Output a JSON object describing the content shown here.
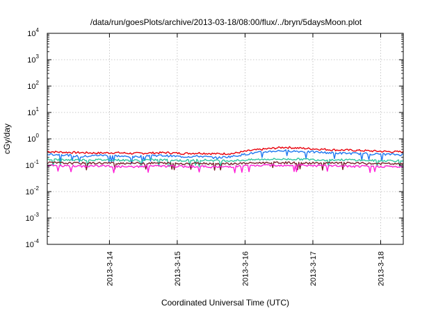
{
  "chart_data": {
    "type": "line",
    "title": "/data/run/goesPlots/archive/2013-03-18/08:00/flux/../bryn/5daysMoon.plot",
    "xlabel": "Coordinated Universal Time (UTC)",
    "ylabel": "cGy/day",
    "yscale": "log",
    "ylim": [
      0.0001,
      10000
    ],
    "xlim": [
      "2013-03-13 02:00",
      "2013-03-18 08:00"
    ],
    "grid": true,
    "x_ticks": [
      {
        "date": "2013-03-14",
        "label": "2013-3-14"
      },
      {
        "date": "2013-03-15",
        "label": "2013-3-15"
      },
      {
        "date": "2013-03-16",
        "label": "2013-3-16"
      },
      {
        "date": "2013-03-17",
        "label": "2013-3-17"
      },
      {
        "date": "2013-03-18",
        "label": "2013-3-18"
      }
    ],
    "y_ticks": [
      {
        "exp": "-4",
        "value": 0.0001
      },
      {
        "exp": "-3",
        "value": 0.001
      },
      {
        "exp": "-2",
        "value": 0.01
      },
      {
        "exp": "-1",
        "value": 0.1
      },
      {
        "exp": "0",
        "value": 1
      },
      {
        "exp": "1",
        "value": 10
      },
      {
        "exp": "2",
        "value": 100
      },
      {
        "exp": "3",
        "value": 1000
      },
      {
        "exp": "4",
        "value": 10000
      }
    ],
    "y_tick_base": "10",
    "x": [
      "2013-03-13 02:00",
      "2013-03-13 08:00",
      "2013-03-13 14:00",
      "2013-03-13 20:00",
      "2013-03-14 02:00",
      "2013-03-14 08:00",
      "2013-03-14 14:00",
      "2013-03-14 20:00",
      "2013-03-15 02:00",
      "2013-03-15 08:00",
      "2013-03-15 14:00",
      "2013-03-15 20:00",
      "2013-03-16 02:00",
      "2013-03-16 08:00",
      "2013-03-16 14:00",
      "2013-03-16 20:00",
      "2013-03-17 02:00",
      "2013-03-17 08:00",
      "2013-03-17 14:00",
      "2013-03-17 20:00",
      "2013-03-18 02:00",
      "2013-03-18 08:00"
    ],
    "series": [
      {
        "color": "#e8000b",
        "values": [
          0.33,
          0.31,
          0.3,
          0.29,
          0.3,
          0.28,
          0.29,
          0.3,
          0.28,
          0.29,
          0.27,
          0.28,
          0.36,
          0.42,
          0.48,
          0.44,
          0.41,
          0.38,
          0.37,
          0.35,
          0.33,
          0.32
        ]
      },
      {
        "color": "#1e78f0",
        "values": [
          0.26,
          0.25,
          0.21,
          0.24,
          0.23,
          0.2,
          0.24,
          0.23,
          0.21,
          0.22,
          0.19,
          0.22,
          0.28,
          0.33,
          0.36,
          0.33,
          0.31,
          0.29,
          0.28,
          0.27,
          0.26,
          0.25
        ]
      },
      {
        "color": "#2ec7a0",
        "values": [
          0.17,
          0.16,
          0.16,
          0.16,
          0.16,
          0.15,
          0.16,
          0.16,
          0.15,
          0.16,
          0.15,
          0.15,
          0.16,
          0.17,
          0.17,
          0.17,
          0.16,
          0.16,
          0.16,
          0.15,
          0.15,
          0.15
        ]
      },
      {
        "color": "#7a1f2b",
        "values": [
          0.125,
          0.12,
          0.12,
          0.12,
          0.12,
          0.12,
          0.12,
          0.12,
          0.115,
          0.12,
          0.115,
          0.115,
          0.12,
          0.125,
          0.125,
          0.12,
          0.12,
          0.12,
          0.12,
          0.115,
          0.115,
          0.11
        ]
      },
      {
        "color": "#ff1fd8",
        "values": [
          0.1,
          0.095,
          0.09,
          0.095,
          0.09,
          0.085,
          0.095,
          0.09,
          0.09,
          0.09,
          0.085,
          0.09,
          0.095,
          0.1,
          0.1,
          0.1,
          0.095,
          0.095,
          0.09,
          0.09,
          0.09,
          0.085
        ]
      }
    ]
  }
}
